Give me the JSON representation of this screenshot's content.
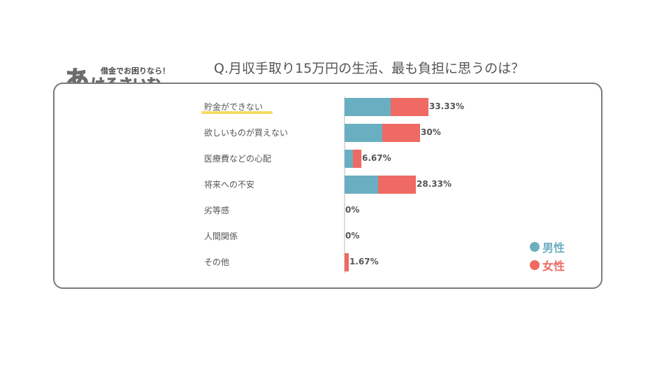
{
  "title": "Q.月収手取り15万円の生活、最も負担に思うのは？",
  "logo": {
    "big": "あ",
    "rest": "けるさいむ",
    "small": "借金でお困りなら！"
  },
  "colors": {
    "male": "#6aafc1",
    "female": "#ee6a62",
    "highlight": "#f4db64"
  },
  "chart_data": {
    "type": "bar",
    "stacked": true,
    "orientation": "horizontal",
    "categories": [
      "貯金ができない",
      "欲しいものが買えない",
      "医療費などの心配",
      "将来への不安",
      "劣等感",
      "人間関係",
      "その他"
    ],
    "series": [
      {
        "name": "男性",
        "values": [
          18.33,
          15.0,
          3.33,
          13.33,
          0,
          0,
          0
        ]
      },
      {
        "name": "女性",
        "values": [
          15.0,
          15.0,
          3.34,
          15.0,
          0,
          0,
          1.67
        ]
      }
    ],
    "totals": [
      "33.33%",
      "30%",
      "6.67%",
      "28.33%",
      "0%",
      "0%",
      "1.67%"
    ],
    "xlim": [
      0,
      60
    ],
    "legend_position": "bottom-right",
    "highlighted_category": "貯金ができない"
  }
}
